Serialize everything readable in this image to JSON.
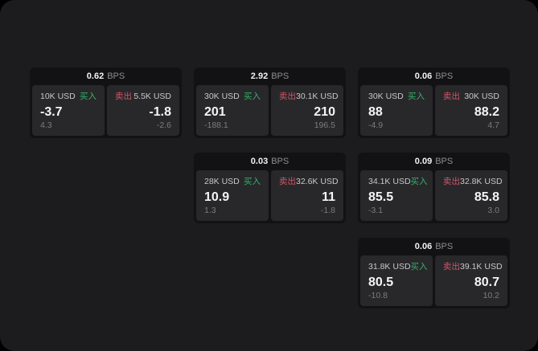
{
  "labels": {
    "bps_unit": "BPS",
    "buy": "买入",
    "sell": "卖出"
  },
  "colors": {
    "page_background": "#1c1c1e",
    "outer_background": "#000000",
    "card_background": "#121214",
    "panel_background": "#28282a",
    "buy_green": "#35b06c",
    "sell_red": "#d05468",
    "primary_text": "#f5f5f7",
    "muted_text": "#7c7c80"
  },
  "cards": [
    {
      "spread": "0.62",
      "buy": {
        "notional": "10K USD",
        "price": "-3.7",
        "sub": "4.3"
      },
      "sell": {
        "notional": "5.5K USD",
        "price": "-1.8",
        "sub": "-2.6"
      }
    },
    {
      "spread": "2.92",
      "buy": {
        "notional": "30K USD",
        "price": "201",
        "sub": "-188.1"
      },
      "sell": {
        "notional": "30.1K USD",
        "price": "210",
        "sub": "196.5"
      }
    },
    {
      "spread": "0.06",
      "buy": {
        "notional": "30K USD",
        "price": "88",
        "sub": "-4.9"
      },
      "sell": {
        "notional": "30K USD",
        "price": "88.2",
        "sub": "4.7"
      }
    },
    {
      "spread": "0.03",
      "buy": {
        "notional": "28K USD",
        "price": "10.9",
        "sub": "1.3"
      },
      "sell": {
        "notional": "32.6K USD",
        "price": "11",
        "sub": "-1.8"
      }
    },
    {
      "spread": "0.09",
      "buy": {
        "notional": "34.1K USD",
        "price": "85.5",
        "sub": "-3.1"
      },
      "sell": {
        "notional": "32.8K USD",
        "price": "85.8",
        "sub": "3.0"
      }
    },
    {
      "spread": "0.06",
      "buy": {
        "notional": "31.8K USD",
        "price": "80.5",
        "sub": "-10.8"
      },
      "sell": {
        "notional": "39.1K USD",
        "price": "80.7",
        "sub": "10.2"
      }
    }
  ]
}
